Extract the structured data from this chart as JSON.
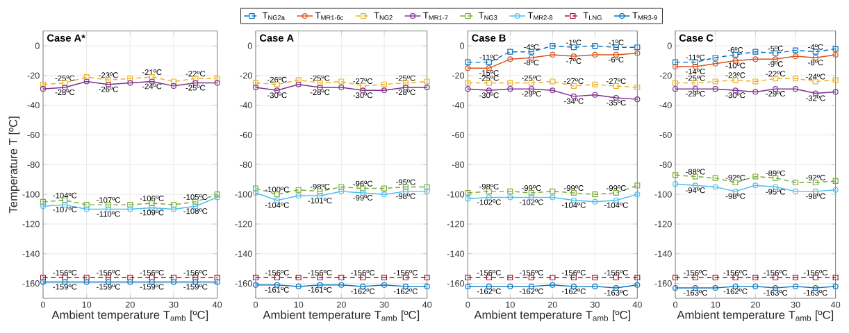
{
  "chart_data": [
    {
      "type": "line",
      "title": "Case A*",
      "xlabel": "Ambient temperature T$_{amb}$ [ºC]",
      "ylabel": "Temperature T [ºC]",
      "x": [
        0,
        5,
        10,
        15,
        20,
        25,
        30,
        35,
        40
      ],
      "xlim": [
        0,
        40
      ],
      "xticks": [
        0,
        10,
        20,
        30,
        40
      ],
      "ylim": [
        -170,
        10
      ],
      "yticks": [
        -160,
        -140,
        -120,
        -100,
        -80,
        -60,
        -40,
        -20,
        0
      ],
      "grid": true,
      "series": [
        {
          "color": "#edb120",
          "marker": "square",
          "line_style": "dashed",
          "values": [
            -26,
            -25,
            -21,
            -23,
            -22,
            -21,
            -24,
            -22,
            -22
          ],
          "value_labels": [
            null,
            "-25ºC",
            null,
            "-23ºC",
            null,
            "-21ºC",
            null,
            "-22ºC",
            null
          ]
        },
        {
          "color": "#7e2f8e",
          "marker": "circle",
          "line_style": "solid",
          "values": [
            -29,
            -28,
            -24,
            -26,
            -25,
            -24,
            -27,
            -25,
            -25
          ],
          "value_labels": [
            null,
            "-28ºC",
            null,
            "-26ºC",
            null,
            "-24ºC",
            null,
            "-25ºC",
            null
          ]
        },
        {
          "color": "#77ac30",
          "marker": "square",
          "line_style": "dashed",
          "values": [
            -105,
            -104,
            -107,
            -107,
            -107,
            -106,
            -107,
            -105,
            -100
          ],
          "value_labels": [
            null,
            "-104ºC",
            null,
            "-107ºC",
            null,
            "-106ºC",
            null,
            "-105ºC",
            null
          ]
        },
        {
          "color": "#4dbeee",
          "marker": "circle",
          "line_style": "solid",
          "values": [
            -108,
            -107,
            -110,
            -110,
            -110,
            -109,
            -110,
            -108,
            -102
          ],
          "value_labels": [
            null,
            "-107ºC",
            null,
            "-110ºC",
            null,
            "-109ºC",
            null,
            "-108ºC",
            null
          ]
        },
        {
          "color": "#a2142f",
          "marker": "square",
          "line_style": "dashed",
          "values": [
            -156,
            -156,
            -156,
            -156,
            -156,
            -156,
            -156,
            -156,
            -156
          ],
          "value_labels": [
            null,
            "-156ºC",
            null,
            "-156ºC",
            null,
            "-156ºC",
            null,
            "-156ºC",
            null
          ]
        },
        {
          "color": "#0072bd",
          "marker": "circle",
          "line_style": "solid",
          "values": [
            -159,
            -159,
            -159,
            -159,
            -159,
            -159,
            -159,
            -159,
            -159
          ],
          "value_labels": [
            null,
            "-159ºC",
            null,
            "-159ºC",
            null,
            "-159ºC",
            null,
            "-159ºC",
            null
          ]
        }
      ]
    },
    {
      "type": "line",
      "title": "Case A",
      "xlabel": "Ambient temperature T$_{amb}$ [ºC]",
      "x": [
        0,
        5,
        10,
        15,
        20,
        25,
        30,
        35,
        40
      ],
      "xlim": [
        0,
        40
      ],
      "xticks": [
        0,
        10,
        20,
        30,
        40
      ],
      "ylim": [
        -170,
        10
      ],
      "yticks": [
        -160,
        -140,
        -120,
        -100,
        -80,
        -60,
        -40,
        -20,
        0
      ],
      "grid": true,
      "series": [
        {
          "color": "#edb120",
          "marker": "square",
          "line_style": "dashed",
          "values": [
            -25,
            -26,
            -23,
            -25,
            -24,
            -27,
            -26,
            -25,
            -24
          ],
          "value_labels": [
            null,
            "-26ºC",
            null,
            "-25ºC",
            null,
            "-27ºC",
            null,
            "-25ºC",
            null
          ]
        },
        {
          "color": "#7e2f8e",
          "marker": "circle",
          "line_style": "solid",
          "values": [
            -28,
            -30,
            -26,
            -28,
            -28,
            -30,
            -30,
            -28,
            -28
          ],
          "value_labels": [
            null,
            "-30ºC",
            null,
            "-28ºC",
            null,
            "-30ºC",
            null,
            "-28ºC",
            null
          ]
        },
        {
          "color": "#77ac30",
          "marker": "square",
          "line_style": "dashed",
          "values": [
            -96,
            -100,
            -97,
            -98,
            -95,
            -96,
            -96,
            -95,
            -95
          ],
          "value_labels": [
            null,
            "-100ºC",
            null,
            "-98ºC",
            null,
            "-96ºC",
            null,
            "-95ºC",
            null
          ]
        },
        {
          "color": "#4dbeee",
          "marker": "circle",
          "line_style": "solid",
          "values": [
            -99,
            -104,
            -101,
            -101,
            -98,
            -99,
            -100,
            -98,
            -98
          ],
          "value_labels": [
            null,
            "-104ºC",
            null,
            "-101ºC",
            null,
            "-99ºC",
            null,
            "-98ºC",
            null
          ]
        },
        {
          "color": "#a2142f",
          "marker": "square",
          "line_style": "dashed",
          "values": [
            -156,
            -156,
            -156,
            -156,
            -156,
            -156,
            -156,
            -156,
            -156
          ],
          "value_labels": [
            null,
            "-156ºC",
            null,
            "-156ºC",
            null,
            "-156ºC",
            null,
            "-156ºC",
            null
          ]
        },
        {
          "color": "#0072bd",
          "marker": "circle",
          "line_style": "solid",
          "values": [
            -161,
            -161,
            -162,
            -161,
            -161,
            -162,
            -161,
            -162,
            -162
          ],
          "value_labels": [
            null,
            "-161ºC",
            null,
            "-161ºC",
            null,
            "-162ºC",
            null,
            "-162ºC",
            null
          ]
        }
      ]
    },
    {
      "type": "line",
      "title": "Case B",
      "xlabel": "Ambient temperature T$_{amb}$ [ºC]",
      "x": [
        0,
        5,
        10,
        15,
        20,
        25,
        30,
        35,
        40
      ],
      "xlim": [
        0,
        40
      ],
      "xticks": [
        0,
        10,
        20,
        30,
        40
      ],
      "ylim": [
        -170,
        10
      ],
      "yticks": [
        -160,
        -140,
        -120,
        -100,
        -80,
        -60,
        -40,
        -20,
        0
      ],
      "grid": true,
      "legend": "top",
      "series": [
        {
          "name": "T$_{NG2a}$",
          "color": "#0072bd",
          "marker": "square",
          "line_style": "dashed",
          "values": [
            -11,
            -11,
            -4,
            -4,
            0,
            -1,
            0,
            -1,
            -1
          ],
          "value_labels": [
            null,
            "-11ºC",
            null,
            "-4ºC",
            null,
            "-1ºC",
            null,
            "-1ºC",
            null
          ]
        },
        {
          "name": "T$_{MR1-6c}$",
          "color": "#d95319",
          "marker": "circle",
          "line_style": "solid",
          "values": [
            -15,
            -15,
            -9,
            -8,
            -6,
            -7,
            -6,
            -6,
            -5
          ],
          "value_labels": [
            null,
            "-15ºC",
            null,
            "-8ºC",
            null,
            "-7ºC",
            null,
            "-6ºC",
            null
          ]
        },
        {
          "name": "T$_{NG2}$",
          "color": "#edb120",
          "marker": "square",
          "line_style": "dashed",
          "values": [
            -25,
            -25,
            -25,
            -25,
            -24,
            -27,
            -26,
            -27,
            -28
          ],
          "value_labels": [
            null,
            "-25ºC",
            null,
            "-25ºC",
            null,
            "-27ºC",
            null,
            "-27ºC",
            null
          ]
        },
        {
          "name": "T$_{MR1-7}$",
          "color": "#7e2f8e",
          "marker": "circle",
          "line_style": "solid",
          "values": [
            -29,
            -30,
            -29,
            -29,
            -30,
            -34,
            -33,
            -35,
            -36
          ],
          "value_labels": [
            null,
            "-30ºC",
            null,
            "-29ºC",
            null,
            "-34ºC",
            null,
            "-35ºC",
            null
          ]
        },
        {
          "name": "T$_{NG3}$",
          "color": "#77ac30",
          "marker": "square",
          "line_style": "dashed",
          "values": [
            -99,
            -98,
            -98,
            -99,
            -98,
            -99,
            -100,
            -99,
            -94
          ],
          "value_labels": [
            null,
            "-98ºC",
            null,
            "-99ºC",
            null,
            "-99ºC",
            null,
            "-99ºC",
            null
          ]
        },
        {
          "name": "T$_{MR2-8}$",
          "color": "#4dbeee",
          "marker": "circle",
          "line_style": "solid",
          "values": [
            -103,
            -102,
            -102,
            -102,
            -102,
            -104,
            -105,
            -104,
            -100
          ],
          "value_labels": [
            null,
            "-102ºC",
            null,
            "-102ºC",
            null,
            "-104ºC",
            null,
            "-104ºC",
            null
          ]
        },
        {
          "name": "T$_{LNG}$",
          "color": "#a2142f",
          "marker": "square",
          "line_style": "dashed",
          "values": [
            -156,
            -156,
            -156,
            -156,
            -156,
            -156,
            -156,
            -156,
            -156
          ],
          "value_labels": [
            null,
            "-156ºC",
            null,
            "-156ºC",
            null,
            "-156ºC",
            null,
            "-156ºC",
            null
          ]
        },
        {
          "name": "T$_{MR3-9}$",
          "color": "#0072bd",
          "marker": "circle",
          "line_style": "solid",
          "values": [
            -162,
            -162,
            -162,
            -162,
            -161,
            -162,
            -162,
            -163,
            -161
          ],
          "value_labels": [
            null,
            "-162ºC",
            null,
            "-162ºC",
            null,
            "-162ºC",
            null,
            "-163ºC",
            null
          ]
        }
      ]
    },
    {
      "type": "line",
      "title": "Case C",
      "xlabel": "Ambient temperature T$_{amb}$ [ºC]",
      "x": [
        0,
        5,
        10,
        15,
        20,
        25,
        30,
        35,
        40
      ],
      "xlim": [
        0,
        40
      ],
      "xticks": [
        0,
        10,
        20,
        30,
        40
      ],
      "ylim": [
        -170,
        10
      ],
      "yticks": [
        -160,
        -140,
        -120,
        -100,
        -80,
        -60,
        -40,
        -20,
        0
      ],
      "grid": true,
      "series": [
        {
          "color": "#0072bd",
          "marker": "square",
          "line_style": "dashed",
          "values": [
            -11,
            -11,
            -8,
            -6,
            -4,
            -5,
            -3,
            -4,
            -2
          ],
          "value_labels": [
            null,
            "-11ºC",
            null,
            "-6ºC",
            null,
            "-5ºC",
            null,
            "-4ºC",
            null
          ]
        },
        {
          "color": "#d95319",
          "marker": "circle",
          "line_style": "solid",
          "values": [
            -14,
            -14,
            -12,
            -10,
            -9,
            -9,
            -7,
            -8,
            -6
          ],
          "value_labels": [
            null,
            "-14ºC",
            null,
            "-10ºC",
            null,
            "-9ºC",
            null,
            "-8ºC",
            null
          ]
        },
        {
          "color": "#edb120",
          "marker": "square",
          "line_style": "dashed",
          "values": [
            -25,
            -25,
            -24,
            -23,
            -24,
            -22,
            -22,
            -24,
            -23
          ],
          "value_labels": [
            null,
            "-25ºC",
            null,
            "-23ºC",
            null,
            "-22ºC",
            null,
            "-24ºC",
            null
          ]
        },
        {
          "color": "#7e2f8e",
          "marker": "circle",
          "line_style": "solid",
          "values": [
            -29,
            -29,
            -29,
            -30,
            -31,
            -29,
            -29,
            -32,
            -31
          ],
          "value_labels": [
            null,
            "-29ºC",
            null,
            "-30ºC",
            null,
            "-29ºC",
            null,
            "-32ºC",
            null
          ]
        },
        {
          "color": "#77ac30",
          "marker": "square",
          "line_style": "dashed",
          "values": [
            -87,
            -88,
            -89,
            -92,
            -88,
            -89,
            -92,
            -92,
            -91
          ],
          "value_labels": [
            null,
            "-88ºC",
            null,
            "-92ºC",
            null,
            "-89ºC",
            null,
            "-92ºC",
            null
          ]
        },
        {
          "color": "#4dbeee",
          "marker": "circle",
          "line_style": "solid",
          "values": [
            -93,
            -94,
            -95,
            -98,
            -94,
            -95,
            -98,
            -98,
            -97
          ],
          "value_labels": [
            null,
            "-94ºC",
            null,
            "-98ºC",
            null,
            "-95ºC",
            null,
            "-98ºC",
            null
          ]
        },
        {
          "color": "#a2142f",
          "marker": "square",
          "line_style": "dashed",
          "values": [
            -156,
            -156,
            -156,
            -156,
            -156,
            -156,
            -156,
            -156,
            -156
          ],
          "value_labels": [
            null,
            "-156ºC",
            null,
            "-156ºC",
            null,
            "-156ºC",
            null,
            "-156ºC",
            null
          ]
        },
        {
          "color": "#0072bd",
          "marker": "circle",
          "line_style": "solid",
          "values": [
            -163,
            -163,
            -163,
            -162,
            -162,
            -163,
            -162,
            -163,
            -162
          ],
          "value_labels": [
            null,
            "-163ºC",
            null,
            "-162ºC",
            null,
            "-163ºC",
            null,
            "-163ºC",
            null
          ]
        }
      ]
    }
  ]
}
